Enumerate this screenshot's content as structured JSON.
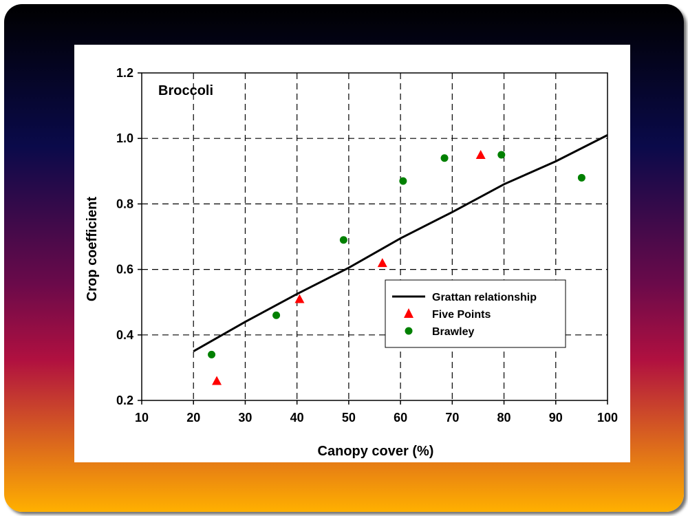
{
  "colors": {
    "background_top": "#000000",
    "background_mid1": "#0a0a4a",
    "background_mid2": "#6a0a4a",
    "background_mid3": "#b01040",
    "background_bottom": "#ffb000",
    "panel": "#ffffff",
    "line": "#000000",
    "triangle": "#ff0000",
    "circle": "#008000"
  },
  "chart_data": {
    "type": "scatter",
    "title": "Broccoli",
    "xlabel": "Canopy cover (%)",
    "ylabel": "Crop coefficient",
    "xlim": [
      10,
      100
    ],
    "ylim": [
      0.2,
      1.2
    ],
    "x_ticks": [
      "10",
      "20",
      "30",
      "40",
      "50",
      "60",
      "70",
      "80",
      "90",
      "100"
    ],
    "y_ticks": [
      "0.2",
      "0.4",
      "0.6",
      "0.8",
      "1.0",
      "1.2"
    ],
    "grid": true,
    "legend_position": "lower-right",
    "series": [
      {
        "name": "Grattan relationship",
        "kind": "line",
        "color": "#000000",
        "points": [
          [
            20,
            0.35
          ],
          [
            30,
            0.44
          ],
          [
            40,
            0.525
          ],
          [
            50,
            0.605
          ],
          [
            60,
            0.695
          ],
          [
            70,
            0.775
          ],
          [
            80,
            0.86
          ],
          [
            90,
            0.93
          ],
          [
            100,
            1.01
          ]
        ]
      },
      {
        "name": "Five Points",
        "kind": "triangle",
        "color": "#ff0000",
        "points": [
          [
            24.5,
            0.26
          ],
          [
            40.5,
            0.51
          ],
          [
            56.5,
            0.62
          ],
          [
            75.5,
            0.95
          ]
        ]
      },
      {
        "name": "Brawley",
        "kind": "circle",
        "color": "#008000",
        "points": [
          [
            23.5,
            0.34
          ],
          [
            36,
            0.46
          ],
          [
            49,
            0.69
          ],
          [
            60.5,
            0.87
          ],
          [
            68.5,
            0.94
          ],
          [
            79.5,
            0.95
          ],
          [
            95,
            0.88
          ]
        ]
      }
    ]
  }
}
